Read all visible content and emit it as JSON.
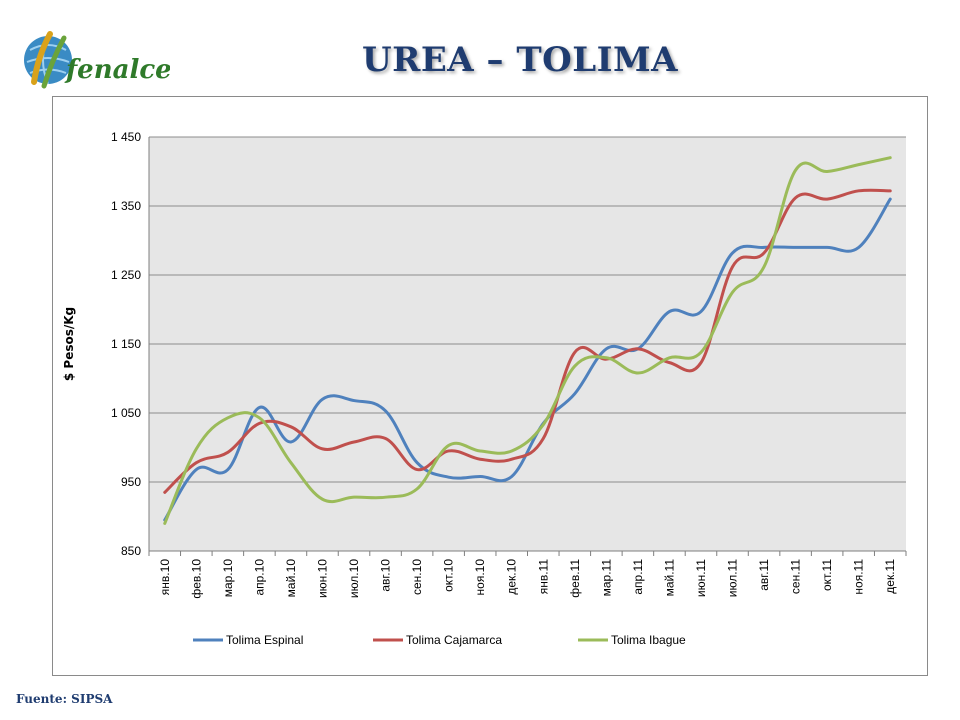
{
  "title": "UREA – TOLIMA",
  "logo": {
    "text": "fenalce"
  },
  "source": "Fuente: SIPSA",
  "colors": {
    "title": "#1f3c70",
    "plot_bg": "#e6e6e6",
    "grid": "#8c8c8c"
  },
  "chart_data": {
    "type": "line",
    "title": "",
    "xlabel": "",
    "ylabel": "$ Pesos/Kg",
    "ylim": [
      850,
      1450
    ],
    "yticks": [
      850,
      950,
      1050,
      1150,
      1250,
      1350,
      1450
    ],
    "ytick_labels": [
      "850",
      "950",
      "1 050",
      "1 150",
      "1 250",
      "1 350",
      "1 450"
    ],
    "grid": true,
    "legend": "bottom",
    "categories": [
      "янв.10",
      "фев.10",
      "мар.10",
      "апр.10",
      "май.10",
      "июн.10",
      "июл.10",
      "авг.10",
      "сен.10",
      "окт.10",
      "ноя.10",
      "дек.10",
      "янв.11",
      "фев.11",
      "мар.11",
      "апр.11",
      "май.11",
      "июн.11",
      "июл.11",
      "авг.11",
      "сен.11",
      "окт.11",
      "ноя.11",
      "дек.11"
    ],
    "series": [
      {
        "name": "Tolima Espinal",
        "color": "#4f81bd",
        "values": [
          895,
          968,
          968,
          1058,
          1008,
          1070,
          1068,
          1053,
          978,
          957,
          958,
          958,
          1035,
          1078,
          1143,
          1143,
          1197,
          1197,
          1282,
          1290,
          1290,
          1290,
          1290,
          1360
        ]
      },
      {
        "name": "Tolima Cajamarca",
        "color": "#c0504d",
        "values": [
          935,
          978,
          993,
          1035,
          1030,
          998,
          1008,
          1013,
          968,
          995,
          983,
          983,
          1013,
          1138,
          1128,
          1143,
          1123,
          1123,
          1262,
          1282,
          1362,
          1360,
          1372,
          1372
        ]
      },
      {
        "name": "Tolima Ibague",
        "color": "#9bbb59",
        "values": [
          890,
          998,
          1043,
          1043,
          978,
          925,
          928,
          928,
          940,
          1003,
          995,
          995,
          1033,
          1118,
          1130,
          1108,
          1130,
          1138,
          1225,
          1262,
          1402,
          1400,
          1410,
          1420
        ]
      }
    ]
  }
}
